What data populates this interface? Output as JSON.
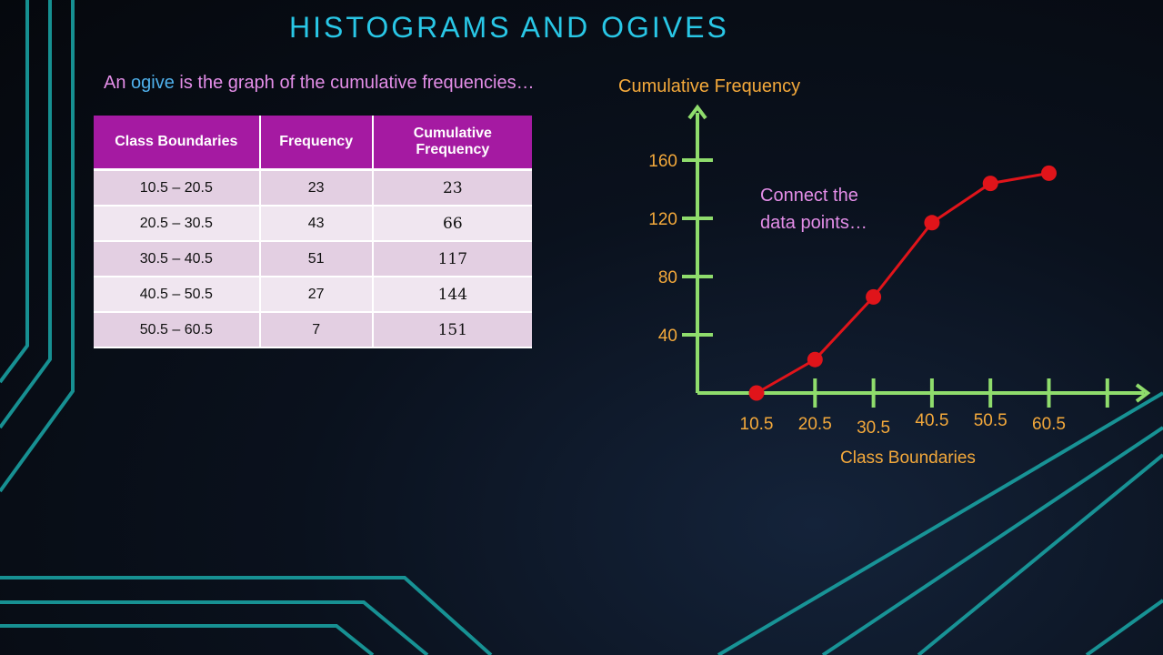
{
  "title": "HISTOGRAMS AND OGIVES",
  "subtitle": {
    "before": "An ",
    "highlight": "ogive",
    "after": " is the graph of the cumulative frequencies…"
  },
  "table": {
    "headers": [
      "Class Boundaries",
      "Frequency",
      "Cumulative Frequency"
    ],
    "rows": [
      [
        "10.5 – 20.5",
        "23",
        "23"
      ],
      [
        "20.5 – 30.5",
        "43",
        "66"
      ],
      [
        "30.5 – 40.5",
        "51",
        "117"
      ],
      [
        "40.5 – 50.5",
        "27",
        "144"
      ],
      [
        "50.5 – 60.5",
        "7",
        "151"
      ]
    ]
  },
  "note": "Connect the data points…",
  "colors": {
    "title": "#29c7e6",
    "accent_pink": "#e48ee8",
    "axis": "#8fdc6c",
    "axis_labels": "#f4a93b",
    "series": "#e0141a",
    "table_header": "#a51aa2",
    "decor_lines": "#1aa8a8"
  },
  "chart_data": {
    "type": "line",
    "xlabel": "Class Boundaries",
    "ylabel": "Cumulative Frequency",
    "x_ticks": [
      "10.5",
      "20.5",
      "30.5",
      "40.5",
      "50.5",
      "60.5"
    ],
    "y_ticks": [
      40,
      80,
      120,
      160
    ],
    "ylim": [
      0,
      180
    ],
    "grid": false,
    "series": [
      {
        "x": [
          10.5,
          20.5,
          30.5,
          40.5,
          50.5,
          60.5
        ],
        "y": [
          0,
          23,
          66,
          117,
          144,
          151
        ]
      }
    ]
  }
}
